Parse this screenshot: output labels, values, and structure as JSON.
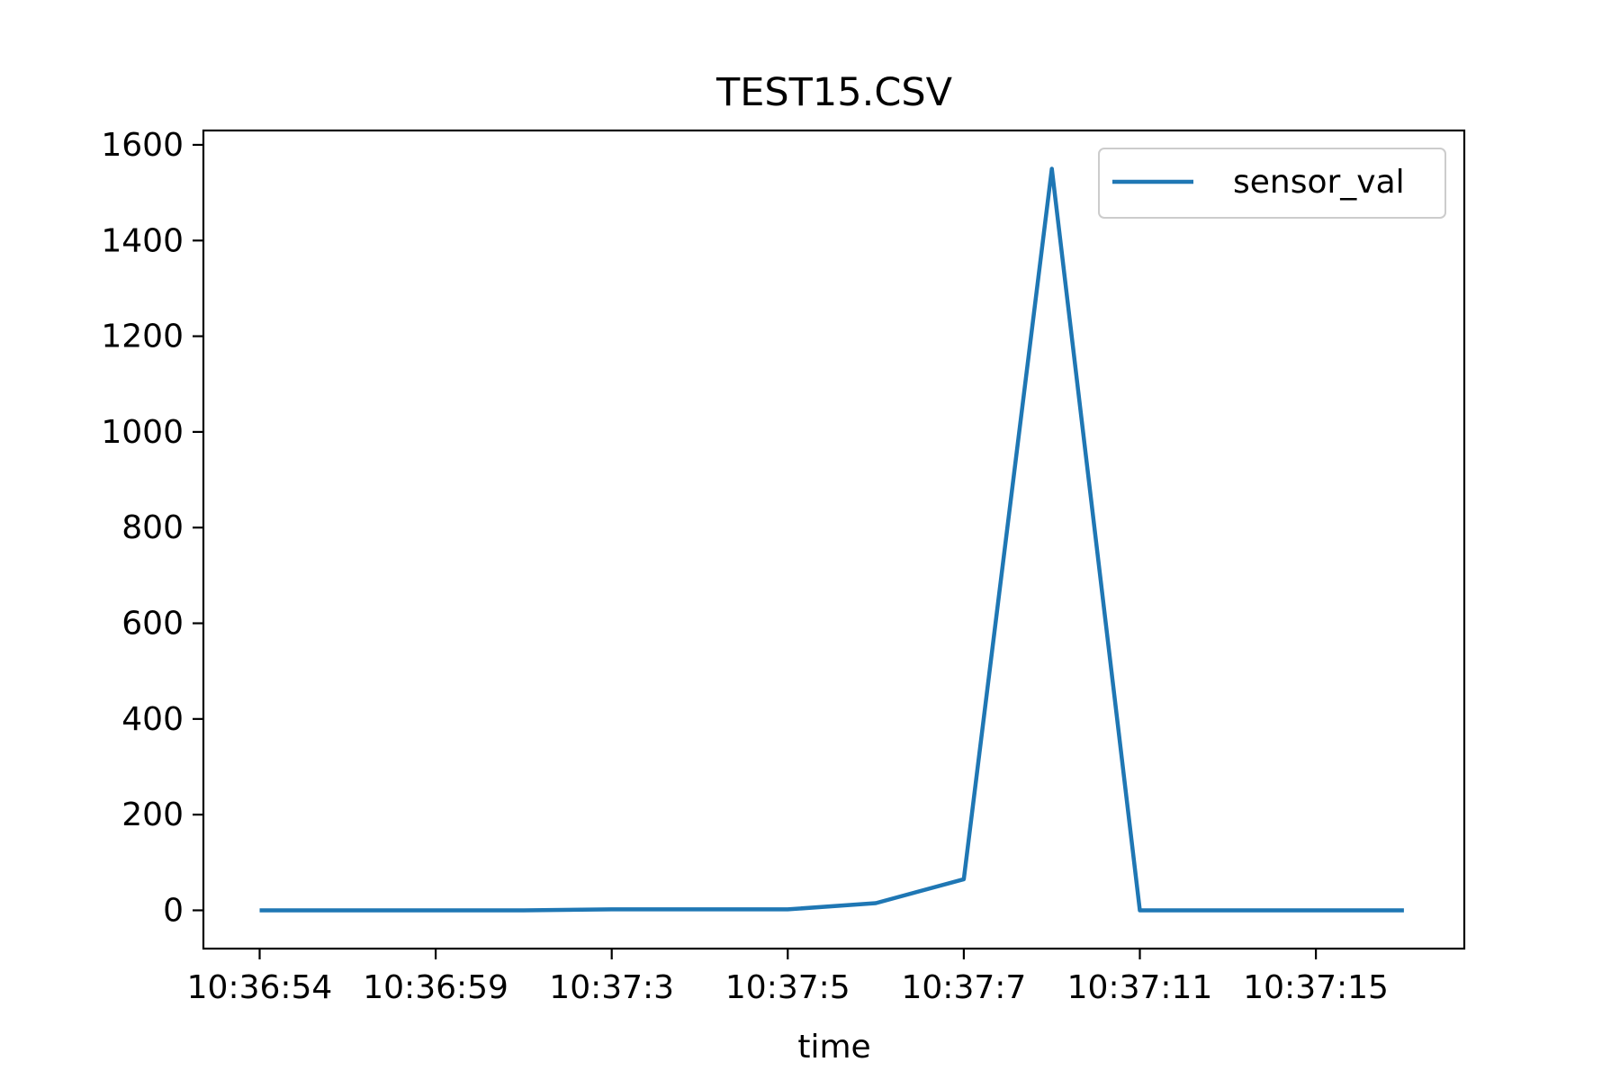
{
  "chart_data": {
    "type": "line",
    "title": "TEST15.CSV",
    "xlabel": "time",
    "ylabel": "",
    "x_tick_labels": [
      "10:36:54",
      "10:36:59",
      "10:37:3",
      "10:37:5",
      "10:37:7",
      "10:37:11",
      "10:37:15"
    ],
    "y_ticks": [
      0,
      200,
      400,
      600,
      800,
      1000,
      1200,
      1400,
      1600
    ],
    "ylim": [
      -80,
      1630
    ],
    "legend_position": "top-right",
    "grid": false,
    "series": [
      {
        "name": "sensor_val",
        "color": "#1f77b4",
        "values": [
          0,
          0,
          0,
          0,
          2,
          2,
          2,
          15,
          65,
          1550,
          0,
          0,
          0,
          0
        ]
      }
    ]
  }
}
